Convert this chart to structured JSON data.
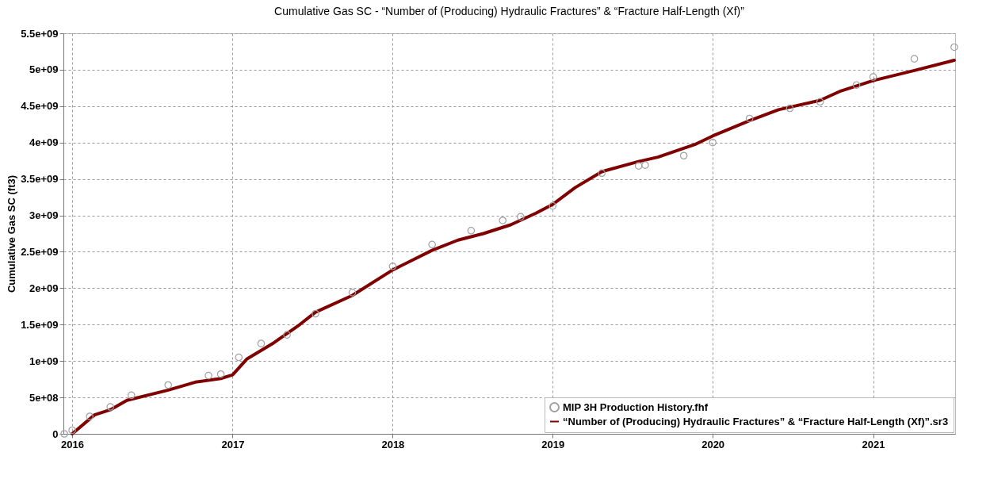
{
  "chart_data": {
    "type": "scatter",
    "title": "Cumulative Gas SC - “Number of (Producing) Hydraulic Fractures” & “Fracture Half-Length (Xf)”",
    "ylabel": "Cumulative Gas SC (ft3)",
    "xlim": [
      "2015-12-12",
      "2021-07-07"
    ],
    "xticks": [
      "2016",
      "2017",
      "2018",
      "2019",
      "2020",
      "2021"
    ],
    "ylim": [
      0,
      5500000000
    ],
    "yticks": [
      0,
      {
        "value": 500000000,
        "label": "5e+08"
      },
      {
        "value": 1000000000,
        "label": "1e+09"
      },
      {
        "value": 1500000000,
        "label": "1.5e+09"
      },
      {
        "value": 2000000000,
        "label": "2e+09"
      },
      {
        "value": 2500000000,
        "label": "2.5e+09"
      },
      {
        "value": 3000000000,
        "label": "3e+09"
      },
      {
        "value": 3500000000,
        "label": "3.5e+09"
      },
      {
        "value": 4000000000,
        "label": "4e+09"
      },
      {
        "value": 4500000000,
        "label": "4.5e+09"
      },
      {
        "value": 5000000000,
        "label": "5e+09"
      },
      {
        "value": 5500000000,
        "label": "5.5e+09"
      }
    ],
    "grid": true,
    "legend": "bottom right",
    "series": [
      {
        "name": "MIP 3H Production History.fhf",
        "marker": "circle",
        "color": "#a0a0a0",
        "x": [
          "2015-12-14",
          "2016-01-01",
          "2016-02-10",
          "2016-03-28",
          "2016-05-15",
          "2016-08-07",
          "2016-11-07",
          "2016-12-05",
          "2017-01-15",
          "2017-03-07",
          "2017-05-05",
          "2017-07-09",
          "2017-10-01",
          "2018-01-01",
          "2018-04-01",
          "2018-06-29",
          "2018-09-09",
          "2018-10-20",
          "2019-01-01",
          "2019-04-23",
          "2019-07-16",
          "2019-07-31",
          "2019-10-27",
          "2020-01-01",
          "2020-03-25",
          "2020-06-25",
          "2020-09-02",
          "2020-11-24",
          "2021-01-01",
          "2021-04-05",
          "2021-07-05"
        ],
        "values": [
          0,
          50000000,
          240000000,
          370000000,
          530000000,
          670000000,
          800000000,
          820000000,
          1050000000,
          1240000000,
          1360000000,
          1650000000,
          1940000000,
          2300000000,
          2600000000,
          2790000000,
          2930000000,
          2980000000,
          3130000000,
          3580000000,
          3680000000,
          3690000000,
          3820000000,
          4000000000,
          4330000000,
          4470000000,
          4560000000,
          4790000000,
          4900000000,
          5150000000,
          5310000000
        ]
      },
      {
        "name": "“Number of (Producing) Hydraulic Fractures” & “Fracture Half-Length (Xf)”.sr3",
        "type": "line",
        "color": "#800000",
        "line_style": "solid",
        "x": [
          "2016-01-01",
          "2016-02-21",
          "2016-03-28",
          "2016-05-05",
          "2016-08-07",
          "2016-10-08",
          "2016-12-05",
          "2017-01-01",
          "2017-02-03",
          "2017-04-05",
          "2017-06-03",
          "2017-07-09",
          "2017-10-01",
          "2018-01-01",
          "2018-04-01",
          "2018-05-30",
          "2018-07-27",
          "2018-09-27",
          "2018-11-24",
          "2019-01-01",
          "2019-02-21",
          "2019-04-23",
          "2019-07-16",
          "2019-08-29",
          "2019-11-24",
          "2020-01-01",
          "2020-03-25",
          "2020-05-30",
          "2020-09-02",
          "2020-10-20",
          "2021-01-01",
          "2021-04-05",
          "2021-07-05"
        ],
        "values": [
          0,
          260000000,
          330000000,
          460000000,
          600000000,
          710000000,
          760000000,
          810000000,
          1030000000,
          1250000000,
          1500000000,
          1670000000,
          1900000000,
          2250000000,
          2520000000,
          2660000000,
          2750000000,
          2870000000,
          3030000000,
          3150000000,
          3380000000,
          3600000000,
          3740000000,
          3800000000,
          3980000000,
          4090000000,
          4300000000,
          4450000000,
          4580000000,
          4710000000,
          4850000000,
          4990000000,
          5130000000
        ]
      }
    ]
  }
}
